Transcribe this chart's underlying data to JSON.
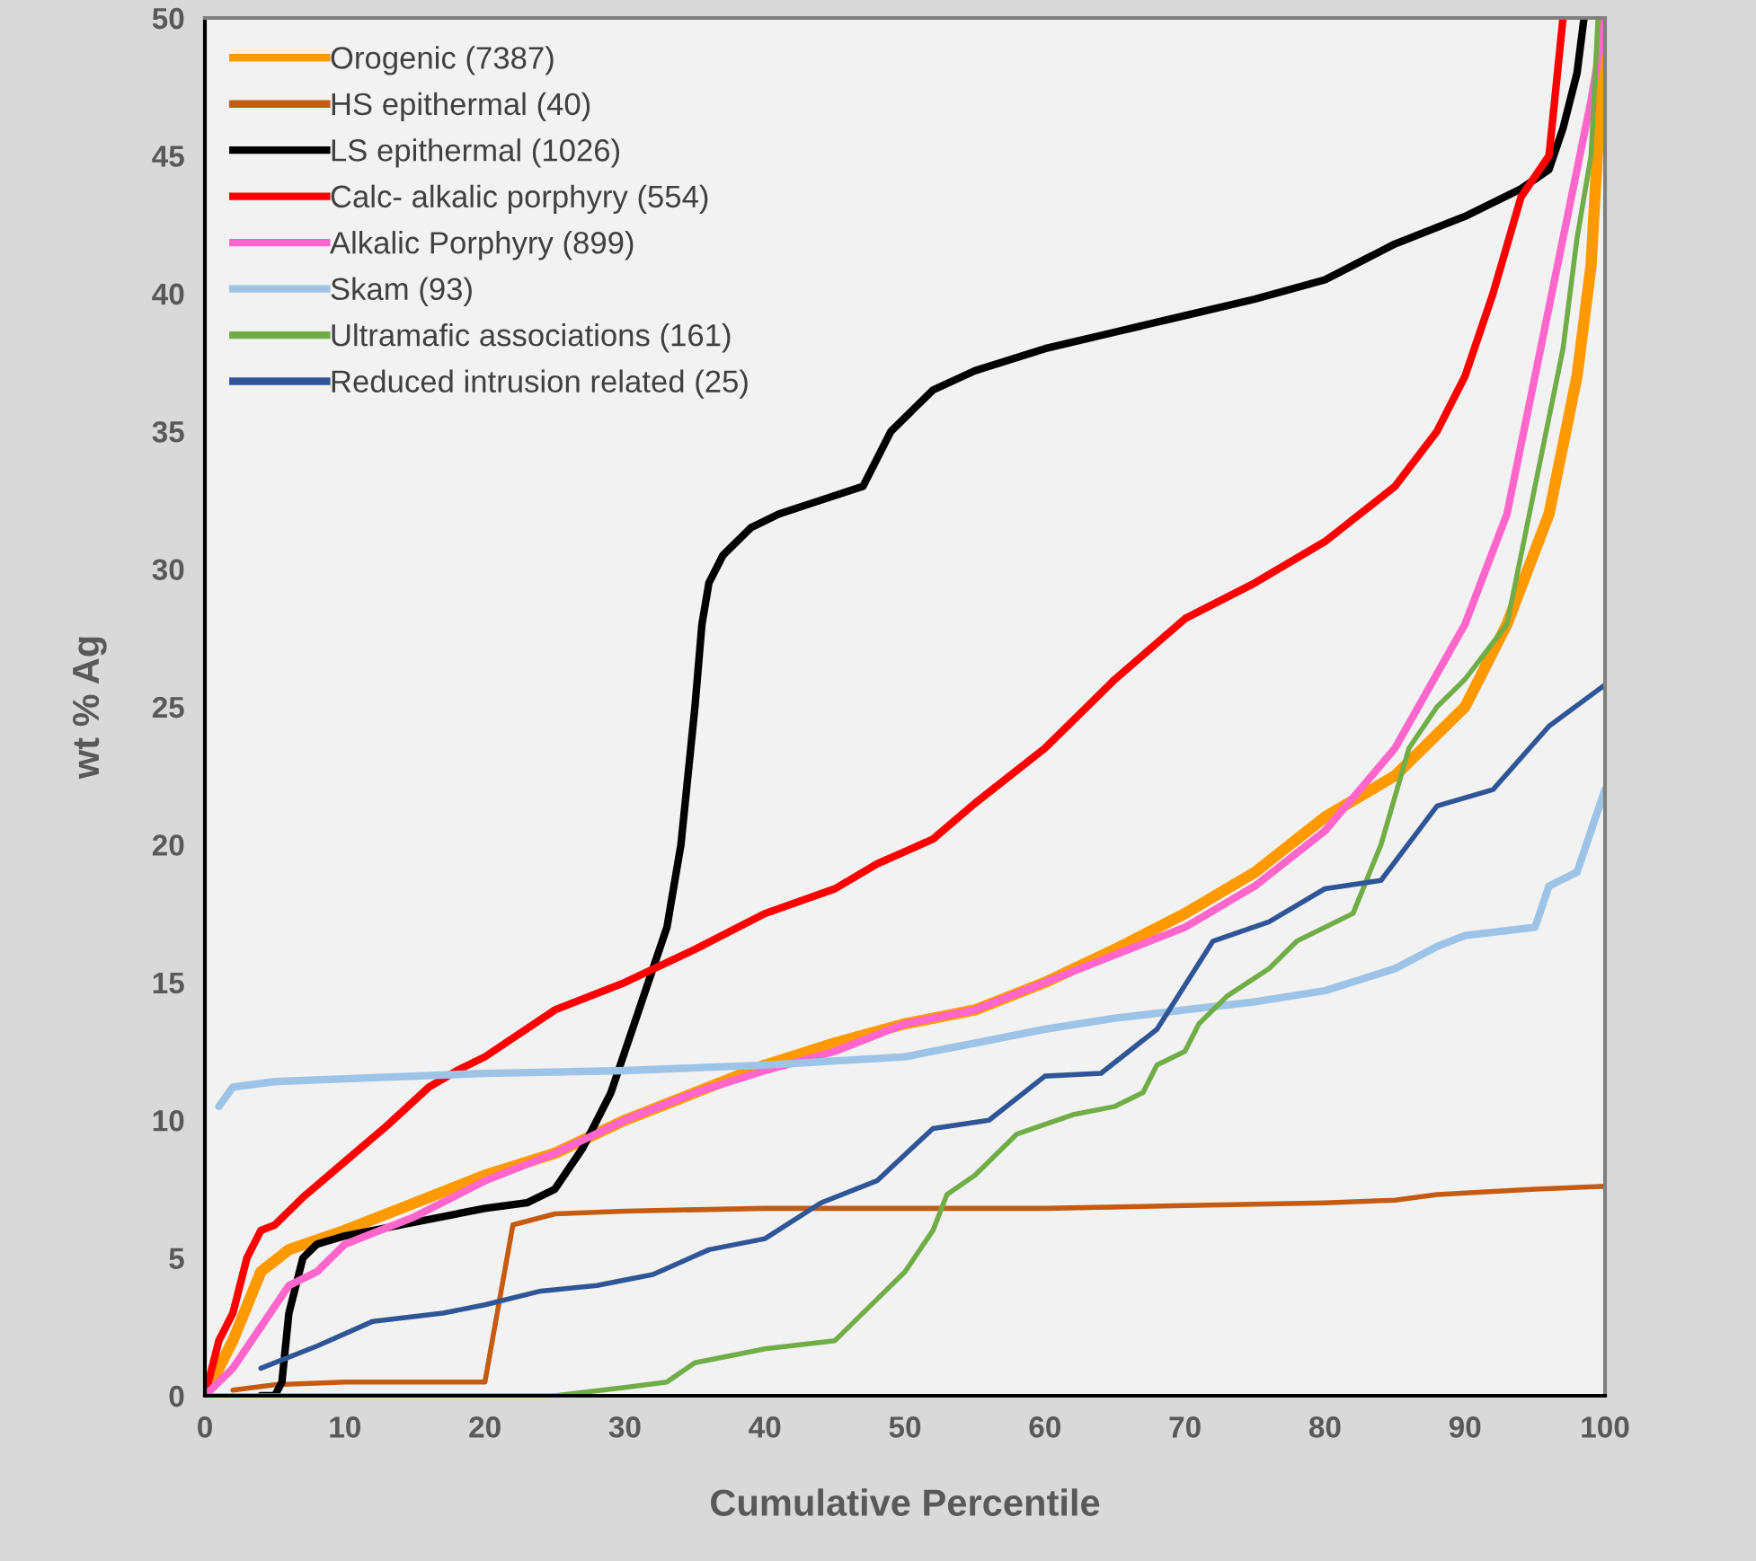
{
  "chart_data": {
    "type": "line",
    "xlabel": "Cumulative Percentile",
    "ylabel": "wt % Ag",
    "xlim": [
      0,
      100
    ],
    "xticks": [
      0,
      10,
      20,
      30,
      40,
      50,
      60,
      70,
      80,
      90,
      100
    ],
    "ylim": [
      0,
      50
    ],
    "yticks": [
      0,
      5,
      10,
      15,
      20,
      25,
      30,
      35,
      40,
      45,
      50
    ],
    "grid": false,
    "legend": "top left",
    "marker": "none",
    "line_style": "solid",
    "series": [
      {
        "name": "Orogenic (7387)",
        "color": "#ff9900",
        "x": [
          0,
          2,
          4,
          6,
          10,
          15,
          20,
          25,
          30,
          35,
          40,
          45,
          50,
          55,
          60,
          65,
          70,
          75,
          80,
          85,
          90,
          93,
          96,
          98,
          99,
          100
        ],
        "values": [
          0,
          2,
          4.5,
          5.3,
          6,
          7,
          8,
          8.8,
          10,
          11,
          12,
          12.8,
          13.5,
          14,
          15,
          16.2,
          17.5,
          19,
          21,
          22.5,
          25,
          28,
          32,
          37,
          41,
          50
        ]
      },
      {
        "name": "HS epithermal (40)",
        "color": "#c55a11",
        "x": [
          2,
          5,
          10,
          20,
          22,
          25,
          30,
          40,
          50,
          60,
          70,
          80,
          85,
          88,
          95,
          100
        ],
        "values": [
          0.2,
          0.4,
          0.5,
          0.5,
          6.2,
          6.6,
          6.7,
          6.8,
          6.8,
          6.8,
          6.9,
          7.0,
          7.1,
          7.3,
          7.5,
          7.6
        ]
      },
      {
        "name": "LS epithermal (1026)",
        "color": "#000000",
        "x": [
          4,
          5,
          5.5,
          6,
          7,
          8,
          10,
          15,
          20,
          23,
          25,
          27,
          29,
          30,
          31,
          32,
          33,
          34,
          35,
          35.5,
          36,
          37,
          39,
          41,
          44,
          47,
          48,
          49,
          52,
          55,
          60,
          65,
          70,
          75,
          80,
          85,
          90,
          94,
          96,
          97,
          98,
          98.5
        ],
        "values": [
          0,
          0,
          0.5,
          3,
          5,
          5.5,
          5.8,
          6.3,
          6.8,
          7.0,
          7.5,
          9,
          11,
          12.5,
          14,
          15.5,
          17,
          20,
          25,
          28,
          29.5,
          30.5,
          31.5,
          32,
          32.5,
          33,
          34,
          35,
          36.5,
          37.2,
          38,
          38.6,
          39.2,
          39.8,
          40.5,
          41.8,
          42.8,
          43.8,
          44.5,
          46,
          48,
          50
        ]
      },
      {
        "name": "Calc- alkalic porphyry (554)",
        "color": "#ff0000",
        "x": [
          0,
          1,
          2,
          3,
          4,
          5,
          7,
          10,
          13,
          16,
          18,
          20,
          25,
          30,
          35,
          40,
          45,
          48,
          52,
          55,
          60,
          65,
          70,
          75,
          80,
          85,
          88,
          90,
          92,
          94,
          96,
          97
        ],
        "values": [
          0,
          2,
          3,
          5,
          6,
          6.2,
          7.2,
          8.5,
          9.8,
          11.2,
          11.8,
          12.3,
          14,
          15,
          16.2,
          17.5,
          18.4,
          19.3,
          20.2,
          21.5,
          23.5,
          26,
          28.2,
          29.5,
          31,
          33,
          35,
          37,
          40,
          43.5,
          45,
          50
        ]
      },
      {
        "name": "Alkalic Porphyry (899)",
        "color": "#ff66cc",
        "x": [
          0,
          2,
          4,
          6,
          8,
          10,
          15,
          20,
          25,
          30,
          35,
          40,
          45,
          50,
          55,
          60,
          65,
          70,
          75,
          80,
          85,
          90,
          93,
          95,
          97,
          99,
          100
        ],
        "values": [
          0,
          1,
          2.5,
          4,
          4.5,
          5.5,
          6.5,
          7.8,
          8.8,
          10,
          11,
          11.8,
          12.5,
          13.5,
          14,
          15,
          16,
          17,
          18.5,
          20.5,
          23.5,
          28,
          32,
          37,
          42,
          47,
          50
        ]
      },
      {
        "name": "Skam (93)",
        "color": "#9dc3e6",
        "x": [
          1,
          2,
          5,
          10,
          20,
          30,
          40,
          50,
          55,
          60,
          65,
          70,
          75,
          80,
          85,
          88,
          90,
          95,
          96,
          98,
          100
        ],
        "values": [
          10.5,
          11.2,
          11.4,
          11.5,
          11.7,
          11.8,
          12,
          12.3,
          12.8,
          13.3,
          13.7,
          14,
          14.3,
          14.7,
          15.5,
          16.3,
          16.7,
          17,
          18.5,
          19,
          22
        ]
      },
      {
        "name": "Ultramafic associations (161)",
        "color": "#70ad47",
        "x": [
          0,
          25,
          30,
          33,
          35,
          38,
          40,
          45,
          48,
          50,
          52,
          53,
          55,
          58,
          62,
          65,
          67,
          68,
          70,
          71,
          73,
          76,
          78,
          82,
          84,
          86,
          88,
          90,
          93,
          95,
          97,
          98,
          99,
          99.5
        ],
        "values": [
          0,
          0,
          0.3,
          0.5,
          1.2,
          1.5,
          1.7,
          2,
          3.5,
          4.5,
          6,
          7.3,
          8,
          9.5,
          10.2,
          10.5,
          11,
          12,
          12.5,
          13.5,
          14.5,
          15.5,
          16.5,
          17.5,
          20,
          23.5,
          25,
          26,
          28,
          33,
          38,
          42,
          45,
          50
        ]
      },
      {
        "name": "Reduced intrusion related (25)",
        "color": "#2f5597",
        "x": [
          4,
          8,
          12,
          17,
          20,
          24,
          28,
          32,
          36,
          40,
          44,
          48,
          52,
          56,
          60,
          64,
          68,
          72,
          76,
          80,
          84,
          88,
          92,
          96,
          100
        ],
        "values": [
          1,
          1.8,
          2.7,
          3.0,
          3.3,
          3.8,
          4.0,
          4.4,
          5.3,
          5.7,
          7.0,
          7.8,
          9.7,
          10,
          11.6,
          11.7,
          13.3,
          16.5,
          17.2,
          18.4,
          18.7,
          21.4,
          22,
          24.3,
          25.8
        ]
      }
    ]
  }
}
